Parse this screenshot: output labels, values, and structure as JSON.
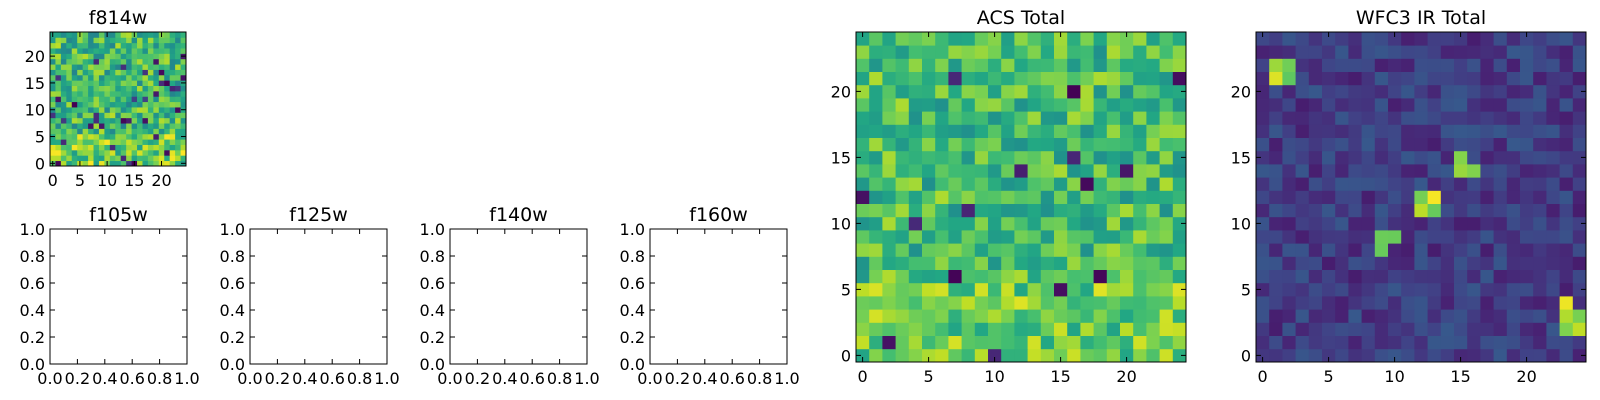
{
  "figure": {
    "colormap": "viridis"
  },
  "chart_data": [
    {
      "id": "f814w",
      "type": "heatmap",
      "title": "f814w",
      "rows": 25,
      "cols": 25,
      "xlim": [
        -0.5,
        24.5
      ],
      "ylim": [
        -0.5,
        24.5
      ],
      "xticks": [
        0,
        5,
        10,
        15,
        20
      ],
      "yticks": [
        0,
        5,
        10,
        15,
        20
      ],
      "value_range": [
        0,
        1
      ],
      "has_image": true,
      "seed": 8141
    },
    {
      "id": "f105w",
      "type": "heatmap",
      "title": "f105w",
      "has_image": false,
      "xlim": [
        0,
        1
      ],
      "ylim": [
        0,
        1
      ],
      "xticks": [
        "0.0",
        "0.2",
        "0.4",
        "0.6",
        "0.8",
        "1.0"
      ],
      "yticks": [
        "0.0",
        "0.2",
        "0.4",
        "0.6",
        "0.8",
        "1.0"
      ]
    },
    {
      "id": "f125w",
      "type": "heatmap",
      "title": "f125w",
      "has_image": false,
      "xlim": [
        0,
        1
      ],
      "ylim": [
        0,
        1
      ],
      "xticks": [
        "0.0",
        "0.2",
        "0.4",
        "0.6",
        "0.8",
        "1.0"
      ],
      "yticks": [
        "0.0",
        "0.2",
        "0.4",
        "0.6",
        "0.8",
        "1.0"
      ]
    },
    {
      "id": "f140w",
      "type": "heatmap",
      "title": "f140w",
      "has_image": false,
      "xlim": [
        0,
        1
      ],
      "ylim": [
        0,
        1
      ],
      "xticks": [
        "0.0",
        "0.2",
        "0.4",
        "0.6",
        "0.8",
        "1.0"
      ],
      "yticks": [
        "0.0",
        "0.2",
        "0.4",
        "0.6",
        "0.8",
        "1.0"
      ]
    },
    {
      "id": "f160w",
      "type": "heatmap",
      "title": "f160w",
      "has_image": false,
      "xlim": [
        0,
        1
      ],
      "ylim": [
        0,
        1
      ],
      "xticks": [
        "0.0",
        "0.2",
        "0.4",
        "0.6",
        "0.8",
        "1.0"
      ],
      "yticks": [
        "0.0",
        "0.2",
        "0.4",
        "0.6",
        "0.8",
        "1.0"
      ]
    },
    {
      "id": "acs-total",
      "type": "heatmap",
      "title": "ACS Total",
      "rows": 25,
      "cols": 25,
      "xlim": [
        -0.5,
        24.5
      ],
      "ylim": [
        -0.5,
        24.5
      ],
      "xticks": [
        0,
        5,
        10,
        15,
        20
      ],
      "yticks": [
        0,
        5,
        10,
        15,
        20
      ],
      "value_range": [
        0,
        1
      ],
      "has_image": true,
      "seed": 2021
    },
    {
      "id": "wfc3-ir-total",
      "type": "heatmap",
      "title": "WFC3 IR Total",
      "rows": 25,
      "cols": 25,
      "xlim": [
        -0.5,
        24.5
      ],
      "ylim": [
        -0.5,
        24.5
      ],
      "xticks": [
        0,
        5,
        10,
        15,
        20
      ],
      "yticks": [
        0,
        5,
        10,
        15,
        20
      ],
      "value_range": [
        0,
        1
      ],
      "has_image": true,
      "seed": 3033,
      "bright_sources": [
        [
          1,
          22
        ],
        [
          2,
          22
        ],
        [
          1,
          21
        ],
        [
          2,
          21
        ],
        [
          15,
          15
        ],
        [
          15,
          14
        ],
        [
          16,
          14
        ],
        [
          12,
          12
        ],
        [
          13,
          12
        ],
        [
          12,
          11
        ],
        [
          13,
          11
        ],
        [
          9,
          9
        ],
        [
          10,
          9
        ],
        [
          9,
          8
        ],
        [
          23,
          4
        ],
        [
          23,
          3
        ],
        [
          24,
          3
        ],
        [
          23,
          2
        ],
        [
          24,
          2
        ]
      ]
    }
  ]
}
